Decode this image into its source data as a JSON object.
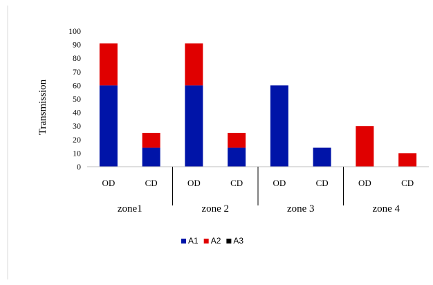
{
  "chart_data": {
    "type": "bar",
    "stacked": true,
    "ylabel": "Transmission",
    "ylim": [
      0,
      100
    ],
    "yticks": [
      0,
      10,
      20,
      30,
      40,
      50,
      60,
      70,
      80,
      90,
      100
    ],
    "groups": [
      {
        "label": "zone1",
        "categories": [
          "OD",
          "CD"
        ]
      },
      {
        "label": "zone 2",
        "categories": [
          "OD",
          "CD"
        ]
      },
      {
        "label": "zone 3",
        "categories": [
          "OD",
          "CD"
        ]
      },
      {
        "label": "zone 4",
        "categories": [
          "OD",
          "CD"
        ]
      }
    ],
    "series": [
      {
        "name": "A1",
        "color": "#0014a8",
        "values": [
          60,
          14,
          60,
          14,
          60,
          14,
          0,
          0
        ]
      },
      {
        "name": "A2",
        "color": "#e00000",
        "values": [
          31,
          11,
          31,
          11,
          0,
          0,
          30,
          10
        ]
      },
      {
        "name": "A3",
        "color": "#000000",
        "values": [
          0,
          0,
          0,
          0,
          0,
          0,
          0,
          0
        ]
      }
    ],
    "legend_position": "bottom",
    "grid": false
  }
}
